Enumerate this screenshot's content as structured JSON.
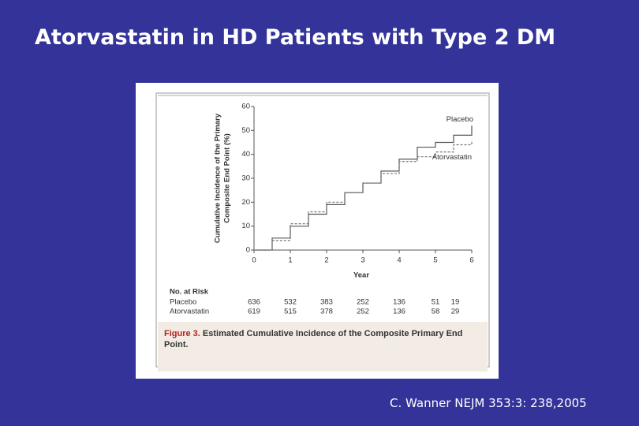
{
  "slide": {
    "title": "Atorvastatin in HD Patients with Type 2 DM",
    "citation": "C. Wanner NEJM 353:3: 238,2005"
  },
  "chart_data": {
    "type": "line",
    "ylabel": [
      "Cumulative Incidence of the Primary",
      "Composite End Point (%)"
    ],
    "xlabel": "Year",
    "x": [
      0,
      0.5,
      1,
      1.5,
      2,
      2.5,
      3,
      3.5,
      4,
      4.5,
      5,
      5.5,
      6
    ],
    "series": [
      {
        "name": "Placebo",
        "color": "#555555",
        "dash": false,
        "values": [
          0,
          5,
          10,
          15,
          19,
          24,
          28,
          33,
          38,
          43,
          45,
          48,
          52
        ]
      },
      {
        "name": "Atorvastatin",
        "color": "#777777",
        "dash": true,
        "values": [
          0,
          4,
          11,
          16,
          20,
          24,
          28,
          32,
          37,
          39,
          41,
          44,
          46
        ]
      }
    ],
    "xlim": [
      0,
      6
    ],
    "xticks": [
      0,
      1,
      2,
      3,
      4,
      5,
      6
    ],
    "ylim": [
      0,
      60
    ],
    "yticks": [
      0,
      10,
      20,
      30,
      40,
      50,
      60
    ],
    "risk_table": {
      "title": "No. at Risk",
      "rows": [
        {
          "name": "Placebo",
          "values": [
            636,
            532,
            383,
            252,
            136,
            51,
            19
          ]
        },
        {
          "name": "Atorvastatin",
          "values": [
            619,
            515,
            378,
            252,
            136,
            58,
            29
          ]
        }
      ]
    },
    "caption_label": "Figure 3.",
    "caption": "Estimated Cumulative Incidence of the Composite Primary End Point."
  }
}
